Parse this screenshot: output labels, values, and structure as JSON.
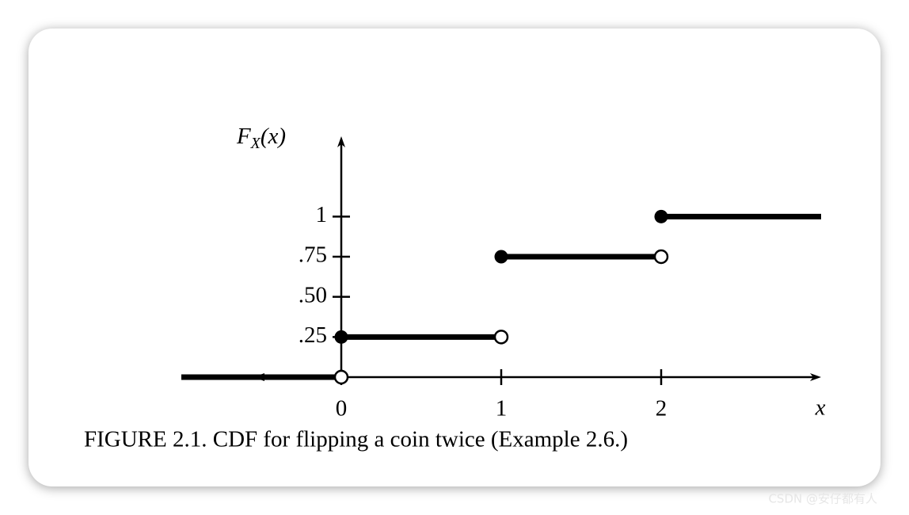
{
  "chart_data": {
    "type": "step",
    "ylabel": "FX(x)",
    "xlabel": "x",
    "x": [
      -1,
      0,
      1,
      2
    ],
    "values": [
      0,
      0.25,
      0.75,
      1
    ],
    "xlim": [
      -1,
      3
    ],
    "ylim": [
      0,
      1.5
    ],
    "xticks": [
      0,
      1,
      2
    ],
    "yticks": [
      {
        "value": 0.25,
        "label": ".25"
      },
      {
        "value": 0.5,
        "label": ".50"
      },
      {
        "value": 0.75,
        "label": ".75"
      },
      1
    ],
    "color": "#000000",
    "caption": "FIGURE 2.1. CDF for flipping a coin twice (Example 2.6.)"
  },
  "watermark": "CSDN @安仔都有人"
}
